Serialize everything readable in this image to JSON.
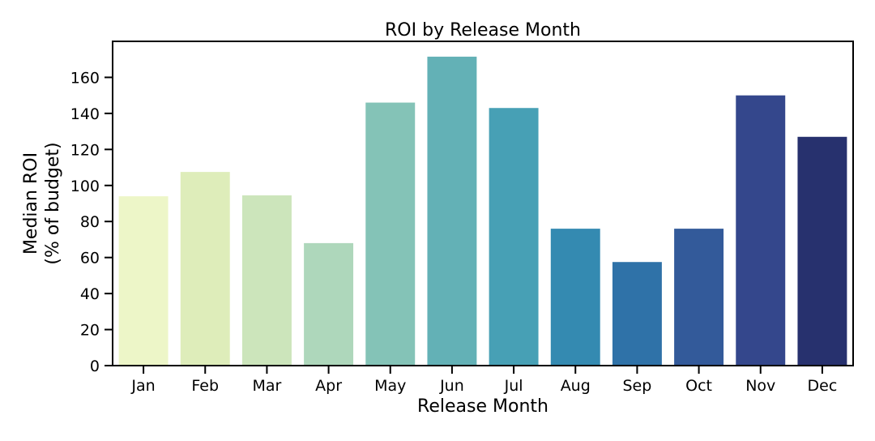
{
  "chart_data": {
    "type": "bar",
    "title": "ROI by Release Month",
    "xlabel": "Release Month",
    "ylabel_line1": "Median ROI",
    "ylabel_line2": "(% of budget)",
    "categories": [
      "Jan",
      "Feb",
      "Mar",
      "Apr",
      "May",
      "Jun",
      "Jul",
      "Aug",
      "Sep",
      "Oct",
      "Nov",
      "Dec"
    ],
    "values": [
      94,
      107.5,
      94.5,
      68,
      146,
      171.5,
      143,
      76,
      57.5,
      76,
      150,
      127
    ],
    "ylim": [
      0,
      180
    ],
    "yticks": [
      0,
      20,
      40,
      60,
      80,
      100,
      120,
      140,
      160
    ],
    "grid": false,
    "colors": [
      "#edf6c8",
      "#deedba",
      "#cce5bb",
      "#aed7bb",
      "#84c3b7",
      "#63b1b6",
      "#47a0b5",
      "#348ab1",
      "#2f72a8",
      "#335a9a",
      "#34478c",
      "#27316e"
    ]
  }
}
